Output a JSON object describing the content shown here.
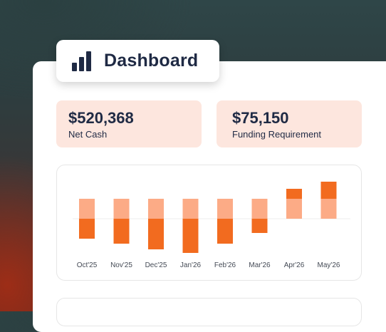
{
  "header": {
    "title": "Dashboard",
    "icon": "bar-chart-icon"
  },
  "stats": [
    {
      "value": "$520,368",
      "label": "Net Cash"
    },
    {
      "value": "$75,150",
      "label": "Funding Requirement"
    }
  ],
  "colors": {
    "dark": "#f26b1f",
    "light": "#fcab86",
    "stat_bg": "#fde6de",
    "text": "#1f2a44"
  },
  "chart_data": {
    "type": "bar",
    "categories": [
      "Oct'25",
      "Nov'25",
      "Dec'25",
      "Jan'26",
      "Feb'26",
      "Mar'26",
      "Apr'26",
      "May'26"
    ],
    "series": [
      {
        "values": [
          28,
          28,
          28,
          28,
          28,
          28,
          28,
          28
        ]
      },
      {
        "values": [
          -28,
          -35,
          -43,
          -48,
          -35,
          -20,
          14,
          24
        ]
      }
    ]
  }
}
